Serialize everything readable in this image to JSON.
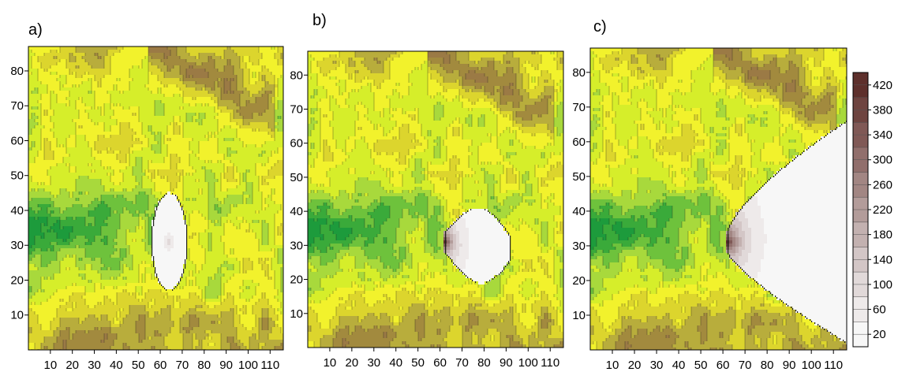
{
  "chart_data": {
    "type": "heatmap",
    "panels": [
      {
        "label": "a)",
        "x_ticks": [
          10,
          20,
          30,
          40,
          50,
          60,
          70,
          80,
          90,
          100,
          110
        ],
        "y_ticks": [
          10,
          20,
          30,
          40,
          50,
          60,
          70,
          80
        ],
        "xlim": [
          0,
          116
        ],
        "ylim": [
          0,
          87
        ],
        "plume": {
          "type": "ellipse",
          "source": [
            64,
            31
          ],
          "center": [
            64,
            31
          ],
          "rx": 8,
          "ry": 14,
          "max_value": 100
        }
      },
      {
        "label": "b)",
        "x_ticks": [
          10,
          20,
          30,
          40,
          50,
          60,
          70,
          80,
          90,
          100,
          110
        ],
        "y_ticks": [
          10,
          20,
          30,
          40,
          50,
          60,
          70,
          80
        ],
        "xlim": [
          0,
          116
        ],
        "ylim": [
          0,
          87
        ],
        "plume": {
          "type": "tongue",
          "source": [
            62,
            31
          ],
          "tip_x": 92,
          "max_value": 420
        }
      },
      {
        "label": "c)",
        "x_ticks": [
          10,
          20,
          30,
          40,
          50,
          60,
          70,
          80,
          90,
          100,
          110
        ],
        "y_ticks": [
          10,
          20,
          30,
          40,
          50,
          60,
          70,
          80
        ],
        "xlim": [
          0,
          116
        ],
        "ylim": [
          0,
          87
        ],
        "plume": {
          "type": "wide",
          "source": [
            62,
            31
          ],
          "tip_x": 116,
          "max_value": 420
        }
      }
    ],
    "colorbar": {
      "ticks": [
        20,
        60,
        100,
        140,
        180,
        220,
        260,
        300,
        340,
        380,
        420
      ],
      "min": 0,
      "max": 440,
      "colors_low_to_high": [
        "#f7f7f7",
        "#eeeaea",
        "#e1d9d9",
        "#d3c6c6",
        "#c3b1b0",
        "#b39c9a",
        "#a28683",
        "#916f6c",
        "#805956",
        "#6e4440",
        "#5e302c"
      ]
    },
    "terrain_colors": [
      "#1d9b3c",
      "#3aaa3a",
      "#6ec23c",
      "#a8d93c",
      "#d6ee2a",
      "#f2f22c",
      "#dcd52d",
      "#b8ad3c",
      "#a28a3e",
      "#9b7a45",
      "#7a5530"
    ]
  }
}
